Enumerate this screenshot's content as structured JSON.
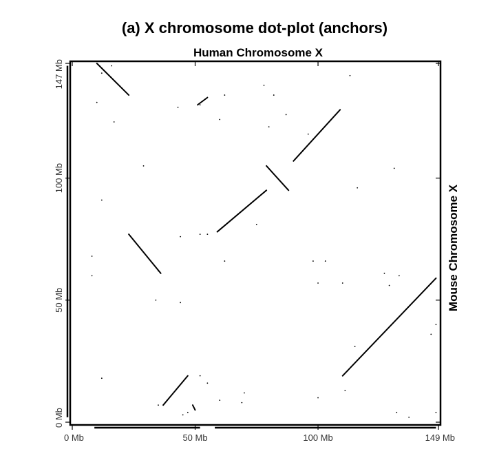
{
  "chart_data": {
    "type": "scatter",
    "title": "(a) X chromosome dot-plot (anchors)",
    "xlabel": "Human Chromosome X",
    "ylabel": "Mouse Chromosome X",
    "xlim": [
      0,
      149
    ],
    "ylim": [
      0,
      147
    ],
    "x_ticks": [
      {
        "value": 0,
        "label": "0 Mb"
      },
      {
        "value": 50,
        "label": "50 Mb"
      },
      {
        "value": 100,
        "label": "100 Mb"
      },
      {
        "value": 149,
        "label": "149 Mb"
      }
    ],
    "y_ticks": [
      {
        "value": 0,
        "label": "0 Mb"
      },
      {
        "value": 50,
        "label": "50 Mb"
      },
      {
        "value": 100,
        "label": "100 Mb"
      },
      {
        "value": 147,
        "label": "147 Mb"
      }
    ],
    "grid": false,
    "legend": "none",
    "color": "#000000",
    "segments": [
      {
        "x1": 10,
        "y1": 147,
        "x2": 23,
        "y2": 134
      },
      {
        "x1": 23,
        "y1": 77,
        "x2": 36,
        "y2": 61
      },
      {
        "x1": 37,
        "y1": 7,
        "x2": 47,
        "y2": 19
      },
      {
        "x1": 59,
        "y1": 78,
        "x2": 79,
        "y2": 95
      },
      {
        "x1": 79,
        "y1": 105,
        "x2": 88,
        "y2": 95
      },
      {
        "x1": 90,
        "y1": 107,
        "x2": 109,
        "y2": 128
      },
      {
        "x1": 110,
        "y1": 19,
        "x2": 148,
        "y2": 59
      },
      {
        "x1": 51,
        "y1": 130,
        "x2": 55,
        "y2": 133
      },
      {
        "x1": 49,
        "y1": 7,
        "x2": 50,
        "y2": 5
      }
    ],
    "points": [
      [
        12,
        143
      ],
      [
        16,
        146
      ],
      [
        10,
        131
      ],
      [
        17,
        123
      ],
      [
        43,
        129
      ],
      [
        52,
        130
      ],
      [
        60,
        124
      ],
      [
        62,
        134
      ],
      [
        78,
        138
      ],
      [
        82,
        134
      ],
      [
        87,
        126
      ],
      [
        80,
        121
      ],
      [
        113,
        142
      ],
      [
        29,
        105
      ],
      [
        96,
        118
      ],
      [
        131,
        104
      ],
      [
        116,
        96
      ],
      [
        12,
        91
      ],
      [
        8,
        68
      ],
      [
        8,
        60
      ],
      [
        44,
        76
      ],
      [
        52,
        77
      ],
      [
        55,
        77
      ],
      [
        62,
        66
      ],
      [
        35,
        62
      ],
      [
        34,
        50
      ],
      [
        44,
        49
      ],
      [
        75,
        81
      ],
      [
        100,
        57
      ],
      [
        98,
        66
      ],
      [
        103,
        66
      ],
      [
        110,
        57
      ],
      [
        148,
        40
      ],
      [
        129,
        56
      ],
      [
        127,
        61
      ],
      [
        133,
        60
      ],
      [
        112,
        21
      ],
      [
        115,
        31
      ],
      [
        146,
        36
      ],
      [
        12,
        18
      ],
      [
        52,
        19
      ],
      [
        55,
        16
      ],
      [
        70,
        12
      ],
      [
        69,
        8
      ],
      [
        60,
        9
      ],
      [
        100,
        10
      ],
      [
        111,
        13
      ],
      [
        132,
        4
      ],
      [
        148,
        4
      ],
      [
        137,
        2
      ],
      [
        45,
        3
      ],
      [
        47,
        4
      ],
      [
        35,
        7
      ]
    ]
  }
}
